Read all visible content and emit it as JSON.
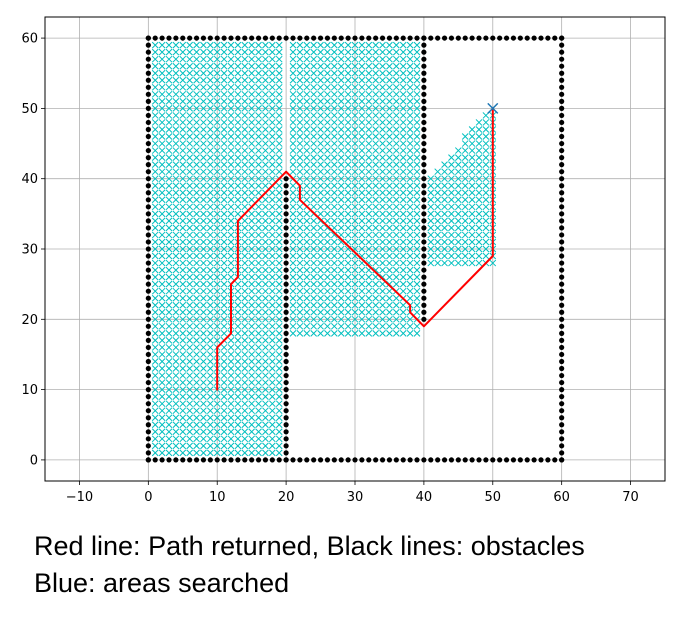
{
  "chart_data": {
    "type": "scatter",
    "title": "",
    "xlabel": "",
    "ylabel": "",
    "xlim": [
      -15,
      75
    ],
    "ylim": [
      -3,
      63
    ],
    "x_ticks": [
      -10,
      0,
      10,
      20,
      30,
      40,
      50,
      60,
      70
    ],
    "y_ticks": [
      0,
      10,
      20,
      30,
      40,
      50,
      60
    ],
    "grid": true,
    "start": {
      "x": 10,
      "y": 10
    },
    "goal": {
      "x": 50,
      "y": 50
    },
    "obstacles": [
      {
        "from": [
          0,
          0
        ],
        "to": [
          60,
          0
        ]
      },
      {
        "from": [
          60,
          0
        ],
        "to": [
          60,
          60
        ]
      },
      {
        "from": [
          0,
          60
        ],
        "to": [
          60,
          60
        ]
      },
      {
        "from": [
          0,
          0
        ],
        "to": [
          0,
          60
        ]
      },
      {
        "from": [
          20,
          0
        ],
        "to": [
          20,
          40
        ]
      },
      {
        "from": [
          40,
          20
        ],
        "to": [
          40,
          60
        ]
      }
    ],
    "searched_regions": [
      {
        "x_range": [
          1,
          19
        ],
        "y_range": [
          1,
          59
        ]
      },
      {
        "x_range": [
          21,
          39
        ],
        "y_range": [
          26,
          59
        ]
      },
      {
        "x_range": [
          21,
          39
        ],
        "y_range": [
          18,
          25
        ]
      },
      {
        "x_range": [
          41,
          50
        ],
        "y_range": [
          28,
          50
        ],
        "upper_left": [
          41,
          40
        ],
        "upper_right": [
          50,
          50
        ]
      }
    ],
    "path": [
      [
        10,
        10
      ],
      [
        10,
        16
      ],
      [
        12,
        18
      ],
      [
        12,
        25
      ],
      [
        13,
        26
      ],
      [
        13,
        34
      ],
      [
        20,
        41
      ],
      [
        22,
        39
      ],
      [
        22,
        37
      ],
      [
        38,
        22
      ],
      [
        38,
        21
      ],
      [
        40,
        19
      ],
      [
        50,
        29
      ],
      [
        50,
        50
      ]
    ],
    "series": [
      {
        "role": "path",
        "color": "#ff0000"
      },
      {
        "role": "obstacles",
        "color": "#000000"
      },
      {
        "role": "searched",
        "color": "#00bfbf"
      }
    ]
  },
  "caption": {
    "line1": "Red line: Path returned, Black lines: obstacles",
    "line2": "Blue: areas searched"
  }
}
